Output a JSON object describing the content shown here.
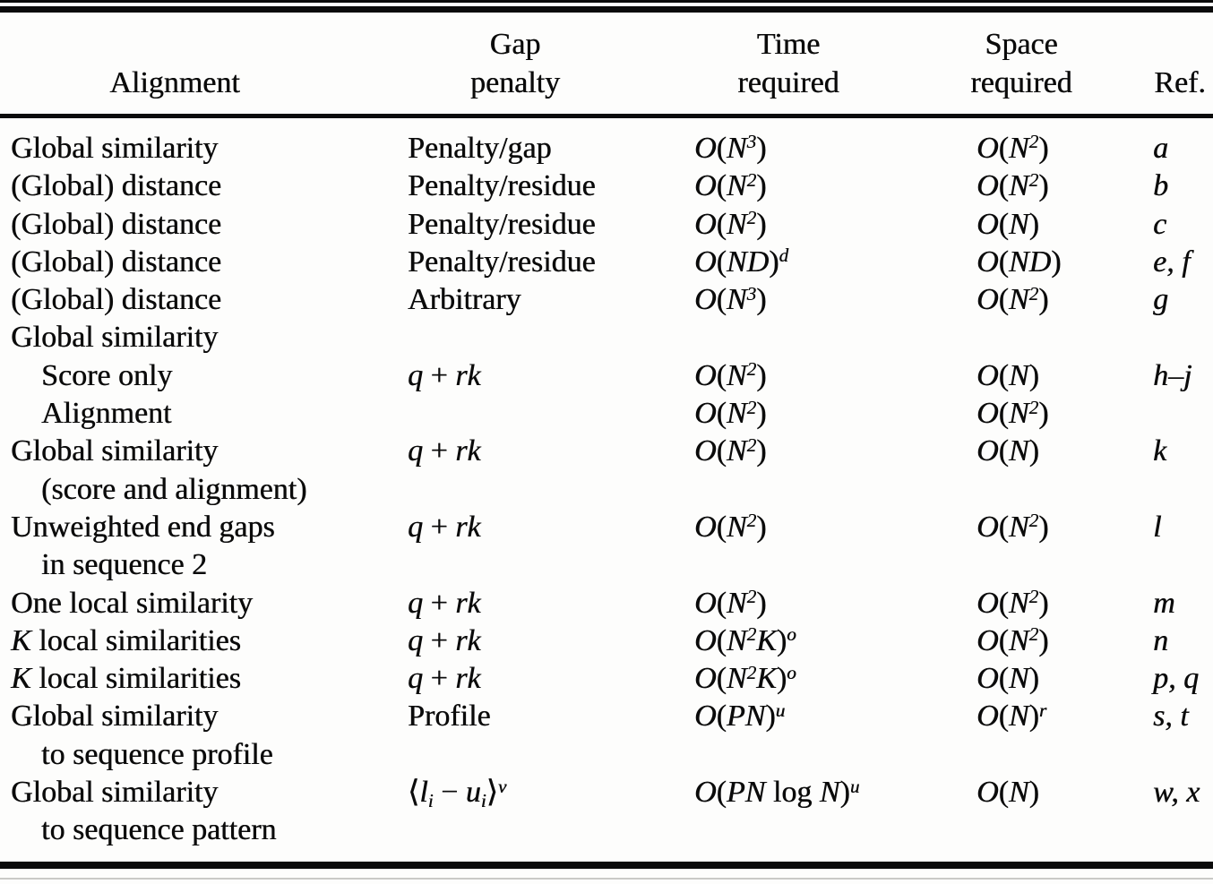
{
  "table": {
    "headers": [
      {
        "top": "",
        "bottom": "Alignment"
      },
      {
        "top": "Gap",
        "bottom": "penalty"
      },
      {
        "top": "Time",
        "bottom": "required"
      },
      {
        "top": "Space",
        "bottom": "required"
      },
      {
        "top": "",
        "bottom": "Ref."
      }
    ],
    "rows": [
      {
        "indent": false,
        "c": [
          [
            [
              "n",
              "Global similarity"
            ]
          ],
          [
            [
              "n",
              "Penalty/gap"
            ]
          ],
          [
            [
              "i",
              "O"
            ],
            [
              "n",
              "("
            ],
            [
              "i",
              "N"
            ],
            [
              "sup",
              "3"
            ],
            [
              "n",
              ")"
            ]
          ],
          [
            [
              "i",
              "O"
            ],
            [
              "n",
              "("
            ],
            [
              "i",
              "N"
            ],
            [
              "sup",
              "2"
            ],
            [
              "n",
              ")"
            ]
          ],
          [
            [
              "i",
              "a"
            ]
          ]
        ]
      },
      {
        "indent": false,
        "c": [
          [
            [
              "n",
              "(Global) distance"
            ]
          ],
          [
            [
              "n",
              "Penalty/residue"
            ]
          ],
          [
            [
              "i",
              "O"
            ],
            [
              "n",
              "("
            ],
            [
              "i",
              "N"
            ],
            [
              "sup",
              "2"
            ],
            [
              "n",
              ")"
            ]
          ],
          [
            [
              "i",
              "O"
            ],
            [
              "n",
              "("
            ],
            [
              "i",
              "N"
            ],
            [
              "sup",
              "2"
            ],
            [
              "n",
              ")"
            ]
          ],
          [
            [
              "i",
              "b"
            ]
          ]
        ]
      },
      {
        "indent": false,
        "c": [
          [
            [
              "n",
              "(Global) distance"
            ]
          ],
          [
            [
              "n",
              "Penalty/residue"
            ]
          ],
          [
            [
              "i",
              "O"
            ],
            [
              "n",
              "("
            ],
            [
              "i",
              "N"
            ],
            [
              "sup",
              "2"
            ],
            [
              "n",
              ")"
            ]
          ],
          [
            [
              "i",
              "O"
            ],
            [
              "n",
              "("
            ],
            [
              "i",
              "N"
            ],
            [
              "n",
              ")"
            ]
          ],
          [
            [
              "i",
              "c"
            ]
          ]
        ]
      },
      {
        "indent": false,
        "c": [
          [
            [
              "n",
              "(Global) distance"
            ]
          ],
          [
            [
              "n",
              "Penalty/residue"
            ]
          ],
          [
            [
              "i",
              "O"
            ],
            [
              "n",
              "("
            ],
            [
              "i",
              "ND"
            ],
            [
              "n",
              ")"
            ],
            [
              "sup",
              "d"
            ]
          ],
          [
            [
              "i",
              "O"
            ],
            [
              "n",
              "("
            ],
            [
              "i",
              "ND"
            ],
            [
              "n",
              ")"
            ]
          ],
          [
            [
              "i",
              "e, f"
            ]
          ]
        ]
      },
      {
        "indent": false,
        "c": [
          [
            [
              "n",
              "(Global) distance"
            ]
          ],
          [
            [
              "n",
              "Arbitrary"
            ]
          ],
          [
            [
              "i",
              "O"
            ],
            [
              "n",
              "("
            ],
            [
              "i",
              "N"
            ],
            [
              "sup",
              "3"
            ],
            [
              "n",
              ")"
            ]
          ],
          [
            [
              "i",
              "O"
            ],
            [
              "n",
              "("
            ],
            [
              "i",
              "N"
            ],
            [
              "sup",
              "2"
            ],
            [
              "n",
              ")"
            ]
          ],
          [
            [
              "i",
              "g"
            ]
          ]
        ]
      },
      {
        "indent": false,
        "c": [
          [
            [
              "n",
              "Global similarity"
            ]
          ],
          [],
          [],
          [],
          []
        ]
      },
      {
        "indent": true,
        "c": [
          [
            [
              "n",
              "Score only"
            ]
          ],
          [
            [
              "i",
              "q"
            ],
            [
              "n",
              " + "
            ],
            [
              "i",
              "rk"
            ]
          ],
          [
            [
              "i",
              "O"
            ],
            [
              "n",
              "("
            ],
            [
              "i",
              "N"
            ],
            [
              "sup",
              "2"
            ],
            [
              "n",
              ")"
            ]
          ],
          [
            [
              "i",
              "O"
            ],
            [
              "n",
              "("
            ],
            [
              "i",
              "N"
            ],
            [
              "n",
              ")"
            ]
          ],
          [
            [
              "i",
              "h–j"
            ]
          ]
        ]
      },
      {
        "indent": true,
        "c": [
          [
            [
              "n",
              "Alignment"
            ]
          ],
          [],
          [
            [
              "i",
              "O"
            ],
            [
              "n",
              "("
            ],
            [
              "i",
              "N"
            ],
            [
              "sup",
              "2"
            ],
            [
              "n",
              ")"
            ]
          ],
          [
            [
              "i",
              "O"
            ],
            [
              "n",
              "("
            ],
            [
              "i",
              "N"
            ],
            [
              "sup",
              "2"
            ],
            [
              "n",
              ")"
            ]
          ],
          []
        ]
      },
      {
        "indent": false,
        "c": [
          [
            [
              "n",
              "Global similarity"
            ]
          ],
          [
            [
              "i",
              "q"
            ],
            [
              "n",
              " + "
            ],
            [
              "i",
              "rk"
            ]
          ],
          [
            [
              "i",
              "O"
            ],
            [
              "n",
              "("
            ],
            [
              "i",
              "N"
            ],
            [
              "sup",
              "2"
            ],
            [
              "n",
              ")"
            ]
          ],
          [
            [
              "i",
              "O"
            ],
            [
              "n",
              "("
            ],
            [
              "i",
              "N"
            ],
            [
              "n",
              ")"
            ]
          ],
          [
            [
              "i",
              "k"
            ]
          ]
        ]
      },
      {
        "indent": true,
        "c": [
          [
            [
              "n",
              "(score and alignment)"
            ]
          ],
          [],
          [],
          [],
          []
        ]
      },
      {
        "indent": false,
        "c": [
          [
            [
              "n",
              "Unweighted end gaps"
            ]
          ],
          [
            [
              "i",
              "q"
            ],
            [
              "n",
              " + "
            ],
            [
              "i",
              "rk"
            ]
          ],
          [
            [
              "i",
              "O"
            ],
            [
              "n",
              "("
            ],
            [
              "i",
              "N"
            ],
            [
              "sup",
              "2"
            ],
            [
              "n",
              ")"
            ]
          ],
          [
            [
              "i",
              "O"
            ],
            [
              "n",
              "("
            ],
            [
              "i",
              "N"
            ],
            [
              "sup",
              "2"
            ],
            [
              "n",
              ")"
            ]
          ],
          [
            [
              "i",
              "l"
            ]
          ]
        ]
      },
      {
        "indent": true,
        "c": [
          [
            [
              "n",
              "in sequence 2"
            ]
          ],
          [],
          [],
          [],
          []
        ]
      },
      {
        "indent": false,
        "c": [
          [
            [
              "n",
              "One local similarity"
            ]
          ],
          [
            [
              "i",
              "q"
            ],
            [
              "n",
              " + "
            ],
            [
              "i",
              "rk"
            ]
          ],
          [
            [
              "i",
              "O"
            ],
            [
              "n",
              "("
            ],
            [
              "i",
              "N"
            ],
            [
              "sup",
              "2"
            ],
            [
              "n",
              ")"
            ]
          ],
          [
            [
              "i",
              "O"
            ],
            [
              "n",
              "("
            ],
            [
              "i",
              "N"
            ],
            [
              "sup",
              "2"
            ],
            [
              "n",
              ")"
            ]
          ],
          [
            [
              "i",
              "m"
            ]
          ]
        ]
      },
      {
        "indent": false,
        "c": [
          [
            [
              "i",
              "K"
            ],
            [
              "n",
              " local similarities"
            ]
          ],
          [
            [
              "i",
              "q"
            ],
            [
              "n",
              " + "
            ],
            [
              "i",
              "rk"
            ]
          ],
          [
            [
              "i",
              "O"
            ],
            [
              "n",
              "("
            ],
            [
              "i",
              "N"
            ],
            [
              "sup",
              "2"
            ],
            [
              "i",
              "K"
            ],
            [
              "n",
              ")"
            ],
            [
              "sup",
              "o"
            ]
          ],
          [
            [
              "i",
              "O"
            ],
            [
              "n",
              "("
            ],
            [
              "i",
              "N"
            ],
            [
              "sup",
              "2"
            ],
            [
              "n",
              ")"
            ]
          ],
          [
            [
              "i",
              "n"
            ]
          ]
        ]
      },
      {
        "indent": false,
        "c": [
          [
            [
              "i",
              "K"
            ],
            [
              "n",
              " local similarities"
            ]
          ],
          [
            [
              "i",
              "q"
            ],
            [
              "n",
              " + "
            ],
            [
              "i",
              "rk"
            ]
          ],
          [
            [
              "i",
              "O"
            ],
            [
              "n",
              "("
            ],
            [
              "i",
              "N"
            ],
            [
              "sup",
              "2"
            ],
            [
              "i",
              "K"
            ],
            [
              "n",
              ")"
            ],
            [
              "sup",
              "o"
            ]
          ],
          [
            [
              "i",
              "O"
            ],
            [
              "n",
              "("
            ],
            [
              "i",
              "N"
            ],
            [
              "n",
              ")"
            ]
          ],
          [
            [
              "i",
              "p, q"
            ]
          ]
        ]
      },
      {
        "indent": false,
        "c": [
          [
            [
              "n",
              "Global similarity"
            ]
          ],
          [
            [
              "n",
              "Profile"
            ]
          ],
          [
            [
              "i",
              "O"
            ],
            [
              "n",
              "("
            ],
            [
              "i",
              "PN"
            ],
            [
              "n",
              ")"
            ],
            [
              "sup",
              "u"
            ]
          ],
          [
            [
              "i",
              "O"
            ],
            [
              "n",
              "("
            ],
            [
              "i",
              "N"
            ],
            [
              "n",
              ")"
            ],
            [
              "sup",
              "r"
            ]
          ],
          [
            [
              "i",
              "s, t"
            ]
          ]
        ]
      },
      {
        "indent": true,
        "c": [
          [
            [
              "n",
              "to sequence profile"
            ]
          ],
          [],
          [],
          [],
          []
        ]
      },
      {
        "indent": false,
        "c": [
          [
            [
              "n",
              "Global similarity"
            ]
          ],
          [
            [
              "n",
              "⟨"
            ],
            [
              "i",
              "l"
            ],
            [
              "sub",
              "i"
            ],
            [
              "n",
              " − "
            ],
            [
              "i",
              "u"
            ],
            [
              "sub",
              "i"
            ],
            [
              "n",
              "⟩"
            ],
            [
              "sup",
              "v"
            ]
          ],
          [
            [
              "i",
              "O"
            ],
            [
              "n",
              "("
            ],
            [
              "i",
              "PN"
            ],
            [
              "n",
              " log "
            ],
            [
              "i",
              "N"
            ],
            [
              "n",
              ")"
            ],
            [
              "sup",
              "u"
            ]
          ],
          [
            [
              "i",
              "O"
            ],
            [
              "n",
              "("
            ],
            [
              "i",
              "N"
            ],
            [
              "n",
              ")"
            ]
          ],
          [
            [
              "i",
              "w, x"
            ]
          ]
        ]
      },
      {
        "indent": true,
        "c": [
          [
            [
              "n",
              "to sequence pattern"
            ]
          ],
          [],
          [],
          [],
          []
        ]
      }
    ]
  }
}
